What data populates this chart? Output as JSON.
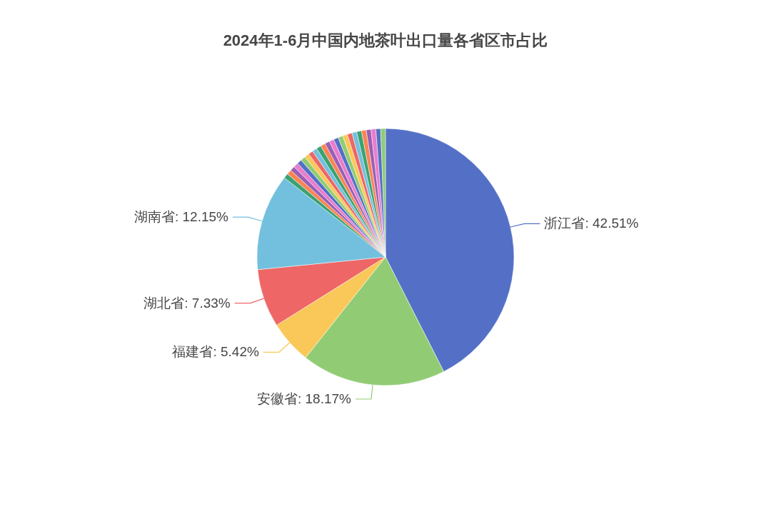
{
  "chart_data": {
    "type": "pie",
    "title": "2024年1-6月中国内地茶叶出口量各省区市占比",
    "categories": [
      "浙江省",
      "安徽省",
      "福建省",
      "湖北省",
      "湖南省",
      null,
      null,
      null,
      null,
      null,
      null,
      null,
      null,
      null,
      null,
      null,
      null,
      null,
      null,
      null,
      null,
      null,
      null,
      null,
      null,
      null,
      null,
      null,
      null
    ],
    "values": [
      42.51,
      18.17,
      5.42,
      7.33,
      12.15,
      0.61,
      0.61,
      0.6,
      0.6,
      0.6,
      0.6,
      0.6,
      0.6,
      0.6,
      0.6,
      0.6,
      0.6,
      0.6,
      0.6,
      0.6,
      0.6,
      0.6,
      0.6,
      0.6,
      0.6,
      0.6,
      0.6,
      0.6,
      0.6
    ],
    "value_labels": [
      "42.51%",
      "18.17%",
      "5.42%",
      "7.33%",
      "12.15%",
      null,
      null,
      null,
      null,
      null,
      null,
      null,
      null,
      null,
      null,
      null,
      null,
      null,
      null,
      null,
      null,
      null,
      null,
      null,
      null,
      null,
      null,
      null,
      null
    ],
    "colors": [
      "#5470c6",
      "#91cc75",
      "#fac858",
      "#ee6666",
      "#73c0de",
      "#3ba272",
      "#fc8452",
      "#9a60b4",
      "#ea7ccc",
      "#5470c6",
      "#91cc75",
      "#fac858",
      "#ee6666",
      "#73c0de",
      "#3ba272",
      "#fc8452",
      "#9a60b4",
      "#ea7ccc",
      "#5470c6",
      "#91cc75",
      "#fac858",
      "#ee6666",
      "#73c0de",
      "#3ba272",
      "#fc8452",
      "#9a60b4",
      "#ea7ccc",
      "#5470c6",
      "#91cc75"
    ]
  }
}
